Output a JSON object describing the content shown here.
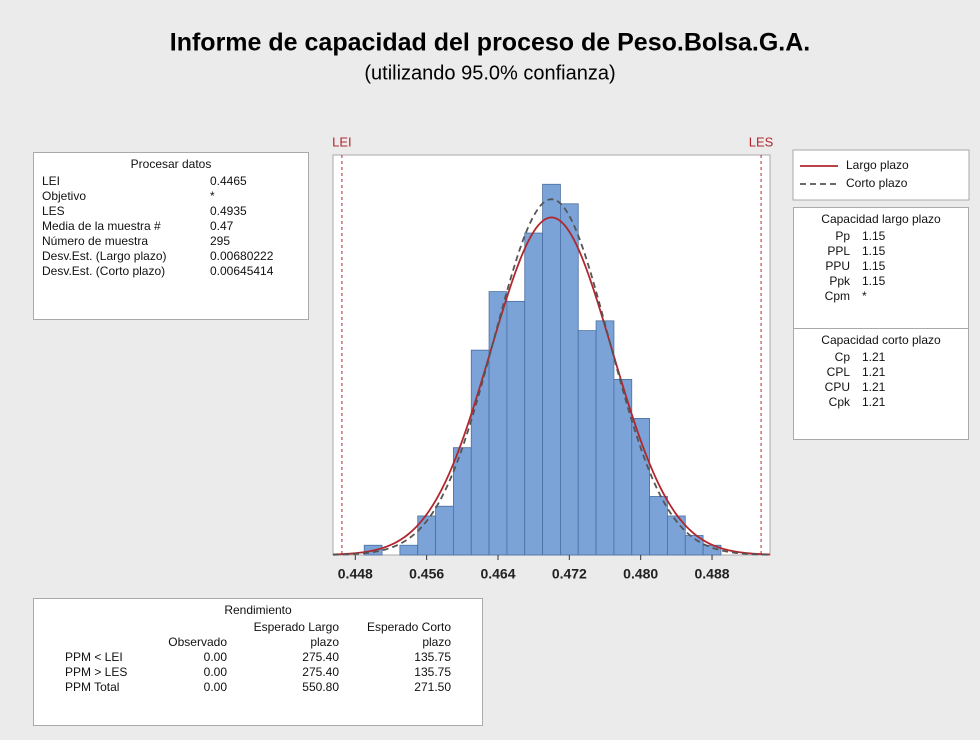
{
  "title": "Informe de capacidad del proceso de Peso.Bolsa.G.A.",
  "subtitle": "(utilizando 95.0% confianza)",
  "chart_data": {
    "type": "histogram",
    "bins": [
      0.449,
      0.451,
      0.453,
      0.455,
      0.457,
      0.459,
      0.461,
      0.463,
      0.465,
      0.467,
      0.469,
      0.471,
      0.473,
      0.475,
      0.477,
      0.479,
      0.481,
      0.483,
      0.485,
      0.487,
      0.489
    ],
    "counts": [
      1,
      0,
      1,
      4,
      5,
      11,
      21,
      27,
      26,
      33,
      38,
      36,
      23,
      24,
      18,
      14,
      6,
      4,
      2,
      1
    ],
    "color": "#7ba3d8",
    "xlim": [
      0.4455,
      0.4945
    ],
    "ylim": [
      0,
      41
    ],
    "xticks": [
      0.448,
      0.456,
      0.464,
      0.472,
      {
        "value": 0.48,
        "label": "0.480"
      },
      0.488
    ],
    "sample_size": 295,
    "limits": [
      {
        "label": "LEI",
        "value": 0.4465
      },
      {
        "label": "LES",
        "value": 0.4935
      }
    ],
    "curves": [
      {
        "name": "Largo plazo",
        "color": "#b0282e",
        "dashed": false,
        "mean": 0.47,
        "sd": 0.00680222
      },
      {
        "name": "Corto plazo",
        "color": "#555555",
        "dashed": true,
        "mean": 0.47,
        "sd": 0.00645414
      }
    ]
  },
  "process_data": {
    "title": "Procesar datos",
    "rows": [
      [
        "LEI",
        "0.4465"
      ],
      [
        "Objetivo",
        "*"
      ],
      [
        "LES",
        "0.4935"
      ],
      [
        "Media de la muestra #",
        "0.47"
      ],
      [
        "Número de muestra",
        "295"
      ],
      [
        "Desv.Est. (Largo plazo)",
        "0.00680222"
      ],
      [
        "Desv.Est. (Corto plazo)",
        "0.00645414"
      ]
    ]
  },
  "capability_long": {
    "title": "Capacidad largo plazo",
    "rows": [
      [
        "Pp",
        "1.15"
      ],
      [
        "PPL",
        "1.15"
      ],
      [
        "PPU",
        "1.15"
      ],
      [
        "Ppk",
        "1.15"
      ],
      [
        "Cpm",
        "*"
      ]
    ]
  },
  "capability_short": {
    "title": "Capacidad corto plazo",
    "rows": [
      [
        "Cp",
        "1.21"
      ],
      [
        "CPL",
        "1.21"
      ],
      [
        "CPU",
        "1.21"
      ],
      [
        "Cpk",
        "1.21"
      ]
    ]
  },
  "yield": {
    "title": "Rendimiento",
    "header": [
      "Observado",
      "Esperado Largo plazo",
      "Esperado Corto plazo"
    ],
    "rows": [
      [
        "PPM < LEI",
        "0.00",
        "275.40",
        "135.75"
      ],
      [
        "PPM > LES",
        "0.00",
        "275.40",
        "135.75"
      ],
      [
        "PPM Total",
        "0.00",
        "550.80",
        "271.50"
      ]
    ]
  }
}
